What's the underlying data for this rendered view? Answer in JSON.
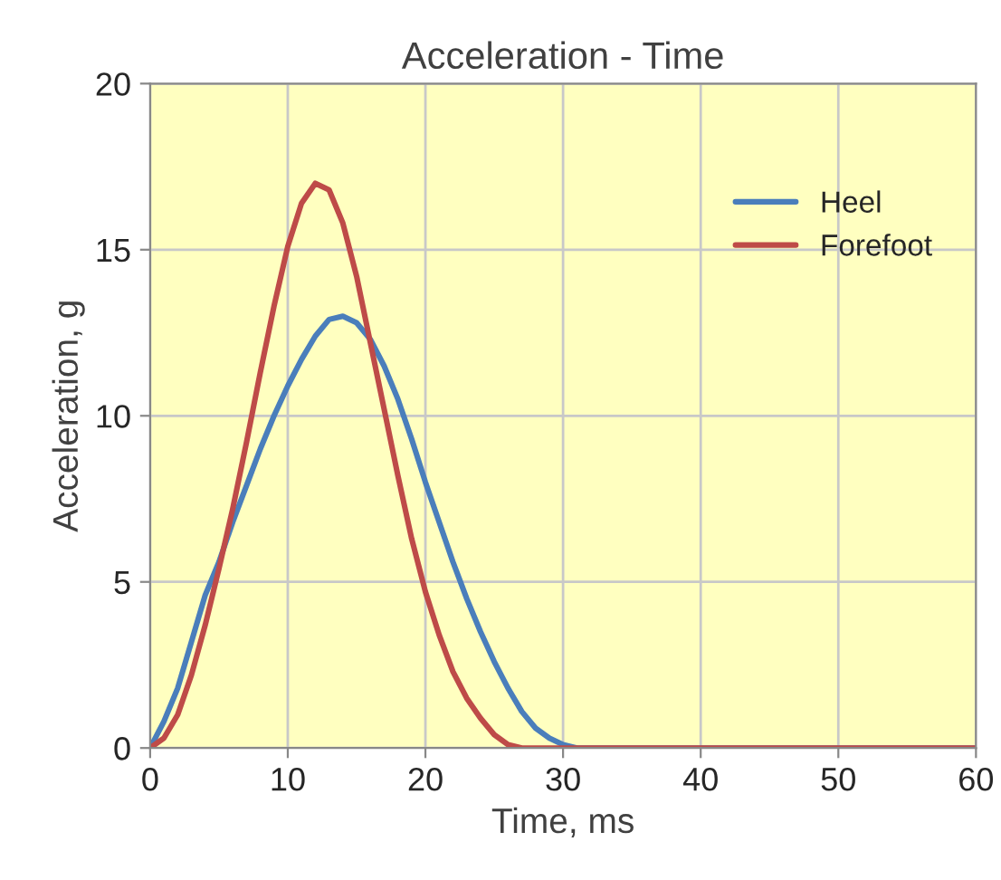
{
  "chart_data": {
    "type": "line",
    "title": "Acceleration - Time",
    "xlabel": "Time, ms",
    "ylabel": "Acceleration, g",
    "xlim": [
      0,
      60
    ],
    "xticks": [
      0,
      10,
      20,
      30,
      40,
      50,
      60
    ],
    "ylim": [
      0,
      20
    ],
    "yticks": [
      0,
      5,
      10,
      15,
      20
    ],
    "grid": true,
    "legend": "top right",
    "marker": "none",
    "line_style": "solid",
    "series": [
      {
        "name": "Heel",
        "color": "#4a7ebb",
        "x": [
          0,
          1,
          2,
          3,
          4,
          5,
          6,
          7,
          8,
          9,
          10,
          11,
          12,
          13,
          14,
          15,
          16,
          17,
          18,
          19,
          20,
          21,
          22,
          23,
          24,
          25,
          26,
          27,
          28,
          29,
          30,
          31,
          32,
          60
        ],
        "values": [
          0,
          0.8,
          1.8,
          3.2,
          4.6,
          5.6,
          6.8,
          7.9,
          9.0,
          10.0,
          10.9,
          11.7,
          12.4,
          12.9,
          13.0,
          12.8,
          12.3,
          11.5,
          10.5,
          9.3,
          8.0,
          6.8,
          5.6,
          4.5,
          3.5,
          2.6,
          1.8,
          1.1,
          0.6,
          0.3,
          0.1,
          0,
          0,
          0
        ]
      },
      {
        "name": "Forefoot",
        "color": "#be4b48",
        "x": [
          0,
          1,
          2,
          3,
          4,
          5,
          6,
          7,
          8,
          9,
          10,
          11,
          12,
          13,
          14,
          15,
          16,
          17,
          18,
          19,
          20,
          21,
          22,
          23,
          24,
          25,
          26,
          27,
          28,
          29,
          60
        ],
        "values": [
          0,
          0.3,
          1.0,
          2.2,
          3.7,
          5.4,
          7.2,
          9.2,
          11.3,
          13.3,
          15.1,
          16.4,
          17.0,
          16.8,
          15.8,
          14.2,
          12.2,
          10.2,
          8.2,
          6.3,
          4.7,
          3.4,
          2.3,
          1.5,
          0.9,
          0.4,
          0.1,
          0,
          0,
          0,
          0
        ]
      }
    ]
  }
}
